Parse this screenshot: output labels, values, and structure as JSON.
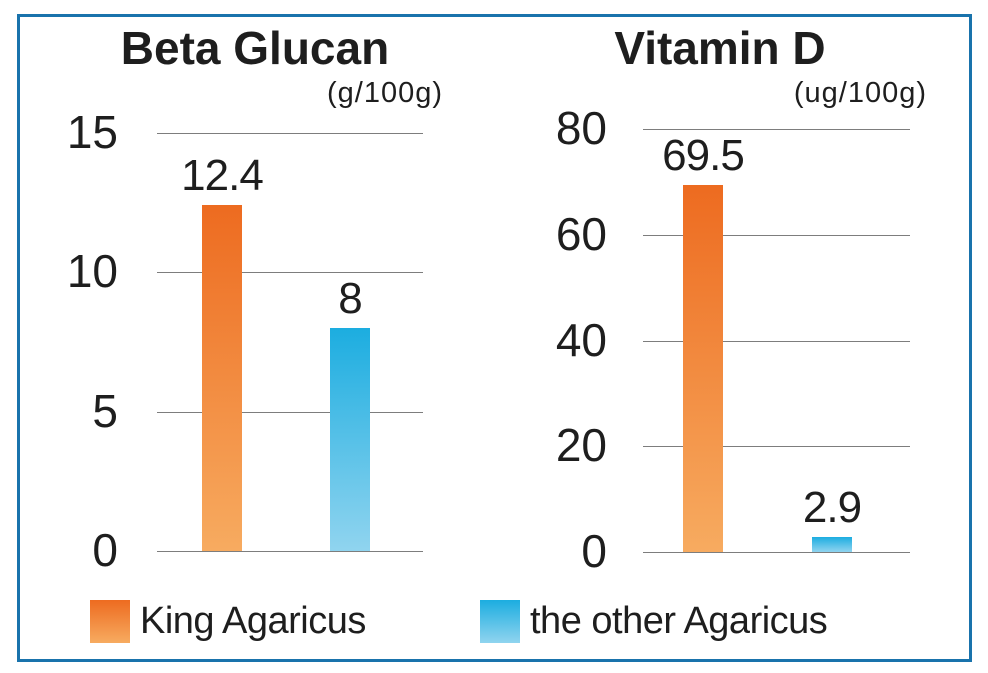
{
  "colors": {
    "frame_border": "#1973ac",
    "background": "#ffffff",
    "text": "#1e1e1e",
    "gridline": "#7d7d7d",
    "king_gradient_top": "#ed6b20",
    "king_gradient_bottom": "#f7ab60",
    "other_gradient_top": "#1cade0",
    "other_gradient_bottom": "#90d4ef"
  },
  "legend": {
    "items": [
      {
        "label": "King Agaricus",
        "swatch": "king"
      },
      {
        "label": "the other Agaricus",
        "swatch": "other"
      }
    ]
  },
  "chart_data": [
    {
      "type": "bar",
      "title": "Beta Glucan",
      "unit_label": "(g/100g)",
      "categories": [
        "King Agaricus",
        "the other Agaricus"
      ],
      "values": [
        12.4,
        8
      ],
      "value_labels": [
        "12.4",
        "8"
      ],
      "y_ticks": [
        0,
        5,
        10,
        15
      ],
      "ylim": [
        0,
        15
      ],
      "grid": true,
      "legend_position": "bottom"
    },
    {
      "type": "bar",
      "title": "Vitamin D",
      "unit_label": "(ug/100g)",
      "categories": [
        "King Agaricus",
        "the other Agaricus"
      ],
      "values": [
        69.5,
        2.9
      ],
      "value_labels": [
        "69.5",
        "2.9"
      ],
      "y_ticks": [
        0,
        20,
        40,
        60,
        80
      ],
      "ylim": [
        0,
        80
      ],
      "grid": true,
      "legend_position": "bottom"
    }
  ]
}
